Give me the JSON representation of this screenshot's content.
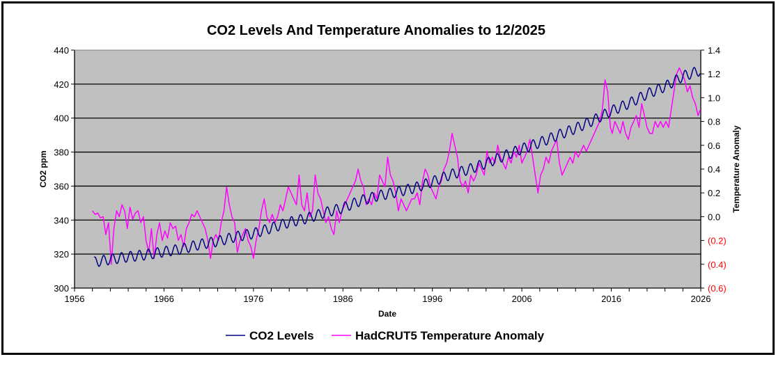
{
  "chart_data": {
    "type": "line",
    "title": "CO2 Levels And Temperature Anomalies to 12/2025",
    "xlabel": "Date",
    "ylabel": "CO2 ppm",
    "y2label": "Temperature Anomaly",
    "xlim": [
      1956,
      2026
    ],
    "ylim": [
      300,
      440
    ],
    "y2lim": [
      -0.6,
      1.4
    ],
    "grid": true,
    "legend_position": "bottom",
    "x_ticks": [
      "1956",
      "1966",
      "1976",
      "1986",
      "1996",
      "2006",
      "2016",
      "2026"
    ],
    "x_tick_values": [
      1956,
      1966,
      1976,
      1986,
      1996,
      2006,
      2016,
      2026
    ],
    "y_ticks": [
      "300",
      "320",
      "340",
      "360",
      "380",
      "400",
      "420",
      "440"
    ],
    "y_tick_values": [
      300,
      320,
      340,
      360,
      380,
      400,
      420,
      440
    ],
    "y2_ticks": [
      "(0.6)",
      "(0.4)",
      "(0.2)",
      "0.0",
      "0.2",
      "0.4",
      "0.6",
      "0.8",
      "1.0",
      "1.2",
      "1.4"
    ],
    "y2_tick_values": [
      -0.6,
      -0.4,
      -0.2,
      0.0,
      0.2,
      0.4,
      0.6,
      0.8,
      1.0,
      1.2,
      1.4
    ],
    "negative_tick_color": "#ff0000",
    "plot_background": "#c0c0c0",
    "series": [
      {
        "name": "CO2 Levels",
        "axis": "left",
        "color": "#000080",
        "seasonal_amplitude_ppm": 3.0,
        "x": [
          1958.2,
          1960,
          1962,
          1964,
          1966,
          1968,
          1970,
          1972,
          1974,
          1976,
          1978,
          1980,
          1982,
          1984,
          1986,
          1988,
          1990,
          1992,
          1994,
          1996,
          1998,
          2000,
          2002,
          2004,
          2006,
          2008,
          2010,
          2012,
          2014,
          2016,
          2018,
          2020,
          2022,
          2024,
          2025.95
        ],
        "annual_mean": [
          315.3,
          316.9,
          318.4,
          319.6,
          321.4,
          323.0,
          325.7,
          327.5,
          330.2,
          332.1,
          335.4,
          338.7,
          341.1,
          344.4,
          347.2,
          351.5,
          354.4,
          356.5,
          358.9,
          362.6,
          366.7,
          369.7,
          373.4,
          377.7,
          381.9,
          385.6,
          389.9,
          393.9,
          398.7,
          404.2,
          408.7,
          414.2,
          418.5,
          424.6,
          428.0
        ]
      },
      {
        "name": "HadCRUT5 Temperature Anomaly",
        "axis": "right",
        "color": "#ff00ff",
        "x": [
          1958.0,
          1958.3,
          1958.6,
          1958.9,
          1959.2,
          1959.5,
          1959.8,
          1960.1,
          1960.4,
          1960.7,
          1961.0,
          1961.3,
          1961.6,
          1961.9,
          1962.2,
          1962.5,
          1962.8,
          1963.1,
          1963.4,
          1963.7,
          1964.0,
          1964.3,
          1964.6,
          1964.9,
          1965.2,
          1965.5,
          1965.8,
          1966.1,
          1966.4,
          1966.7,
          1967.0,
          1967.3,
          1967.6,
          1967.9,
          1968.2,
          1968.5,
          1968.8,
          1969.1,
          1969.4,
          1969.7,
          1970.0,
          1970.3,
          1970.6,
          1970.9,
          1971.2,
          1971.5,
          1971.8,
          1972.1,
          1972.4,
          1972.7,
          1973.0,
          1973.3,
          1973.6,
          1973.9,
          1974.2,
          1974.5,
          1974.8,
          1975.1,
          1975.4,
          1975.7,
          1976.0,
          1976.3,
          1976.6,
          1976.9,
          1977.2,
          1977.5,
          1977.8,
          1978.1,
          1978.4,
          1978.7,
          1979.0,
          1979.3,
          1979.6,
          1979.9,
          1980.2,
          1980.5,
          1980.8,
          1981.1,
          1981.4,
          1981.7,
          1982.0,
          1982.3,
          1982.6,
          1982.9,
          1983.2,
          1983.5,
          1983.8,
          1984.1,
          1984.4,
          1984.7,
          1985.0,
          1985.3,
          1985.6,
          1985.9,
          1986.2,
          1986.5,
          1986.8,
          1987.1,
          1987.4,
          1987.7,
          1988.0,
          1988.3,
          1988.6,
          1988.9,
          1989.2,
          1989.5,
          1989.8,
          1990.1,
          1990.4,
          1990.7,
          1991.0,
          1991.3,
          1991.6,
          1991.9,
          1992.2,
          1992.5,
          1992.8,
          1993.1,
          1993.4,
          1993.7,
          1994.0,
          1994.3,
          1994.6,
          1994.9,
          1995.2,
          1995.5,
          1995.8,
          1996.1,
          1996.4,
          1996.7,
          1997.0,
          1997.3,
          1997.6,
          1997.9,
          1998.2,
          1998.5,
          1998.8,
          1999.1,
          1999.4,
          1999.7,
          2000.0,
          2000.3,
          2000.6,
          2000.9,
          2001.2,
          2001.5,
          2001.8,
          2002.1,
          2002.4,
          2002.7,
          2003.0,
          2003.3,
          2003.6,
          2003.9,
          2004.2,
          2004.5,
          2004.8,
          2005.1,
          2005.4,
          2005.7,
          2006.0,
          2006.3,
          2006.6,
          2006.9,
          2007.2,
          2007.5,
          2007.8,
          2008.1,
          2008.4,
          2008.7,
          2009.0,
          2009.3,
          2009.6,
          2009.9,
          2010.2,
          2010.5,
          2010.8,
          2011.1,
          2011.4,
          2011.7,
          2012.0,
          2012.3,
          2012.6,
          2012.9,
          2013.2,
          2013.5,
          2013.8,
          2014.1,
          2014.4,
          2014.7,
          2015.0,
          2015.3,
          2015.6,
          2015.9,
          2016.1,
          2016.4,
          2016.7,
          2017.0,
          2017.3,
          2017.6,
          2017.9,
          2018.2,
          2018.5,
          2018.8,
          2019.1,
          2019.4,
          2019.7,
          2020.0,
          2020.3,
          2020.6,
          2020.9,
          2021.2,
          2021.5,
          2021.8,
          2022.1,
          2022.4,
          2022.7,
          2023.0,
          2023.3,
          2023.6,
          2023.9,
          2024.2,
          2024.5,
          2024.8,
          2025.1,
          2025.4,
          2025.7,
          2025.95
        ],
        "values": [
          0.05,
          0.02,
          0.03,
          -0.01,
          0.0,
          -0.15,
          -0.05,
          -0.4,
          -0.1,
          0.05,
          0.0,
          0.1,
          0.05,
          -0.1,
          0.08,
          -0.02,
          0.03,
          0.05,
          -0.05,
          0.0,
          -0.2,
          -0.3,
          -0.1,
          -0.35,
          -0.15,
          -0.05,
          -0.2,
          -0.12,
          -0.18,
          -0.05,
          -0.1,
          -0.08,
          -0.2,
          -0.15,
          -0.25,
          -0.1,
          -0.05,
          0.02,
          0.0,
          0.05,
          0.0,
          -0.05,
          -0.1,
          -0.2,
          -0.35,
          -0.2,
          -0.15,
          -0.2,
          -0.05,
          0.05,
          0.25,
          0.1,
          0.0,
          -0.05,
          -0.3,
          -0.2,
          -0.15,
          -0.1,
          -0.2,
          -0.25,
          -0.35,
          -0.2,
          -0.1,
          0.05,
          0.15,
          0.0,
          -0.05,
          0.02,
          -0.05,
          0.0,
          0.1,
          0.05,
          0.15,
          0.25,
          0.2,
          0.15,
          0.1,
          0.35,
          0.1,
          0.05,
          0.2,
          0.0,
          0.05,
          0.35,
          0.2,
          0.15,
          0.05,
          -0.05,
          0.0,
          -0.1,
          -0.15,
          0.05,
          -0.05,
          0.05,
          0.1,
          0.15,
          0.2,
          0.25,
          0.3,
          0.4,
          0.3,
          0.25,
          0.1,
          0.15,
          0.1,
          0.2,
          0.15,
          0.35,
          0.3,
          0.25,
          0.5,
          0.35,
          0.3,
          0.2,
          0.05,
          0.15,
          0.1,
          0.05,
          0.1,
          0.15,
          0.15,
          0.2,
          0.1,
          0.3,
          0.4,
          0.35,
          0.25,
          0.2,
          0.15,
          0.25,
          0.3,
          0.4,
          0.45,
          0.55,
          0.7,
          0.6,
          0.5,
          0.3,
          0.25,
          0.3,
          0.2,
          0.35,
          0.3,
          0.35,
          0.45,
          0.4,
          0.35,
          0.55,
          0.45,
          0.5,
          0.45,
          0.6,
          0.5,
          0.45,
          0.4,
          0.5,
          0.45,
          0.55,
          0.5,
          0.6,
          0.45,
          0.5,
          0.55,
          0.65,
          0.5,
          0.35,
          0.2,
          0.35,
          0.4,
          0.5,
          0.45,
          0.55,
          0.6,
          0.65,
          0.45,
          0.35,
          0.4,
          0.45,
          0.5,
          0.45,
          0.55,
          0.5,
          0.55,
          0.6,
          0.55,
          0.6,
          0.65,
          0.7,
          0.75,
          0.8,
          0.9,
          1.15,
          1.05,
          0.75,
          0.7,
          0.8,
          0.75,
          0.7,
          0.8,
          0.7,
          0.65,
          0.75,
          0.8,
          0.85,
          0.75,
          0.95,
          0.85,
          0.75,
          0.7,
          0.7,
          0.8,
          0.75,
          0.8,
          0.75,
          0.8,
          0.75,
          0.9,
          1.05,
          1.2,
          1.25,
          1.2,
          1.15,
          1.05,
          1.1,
          1.0,
          0.95,
          0.85,
          0.9
        ]
      }
    ]
  },
  "legend": {
    "items": [
      {
        "label": "CO2 Levels",
        "color": "#000080"
      },
      {
        "label": "HadCRUT5 Temperature Anomaly",
        "color": "#ff00ff"
      }
    ]
  }
}
